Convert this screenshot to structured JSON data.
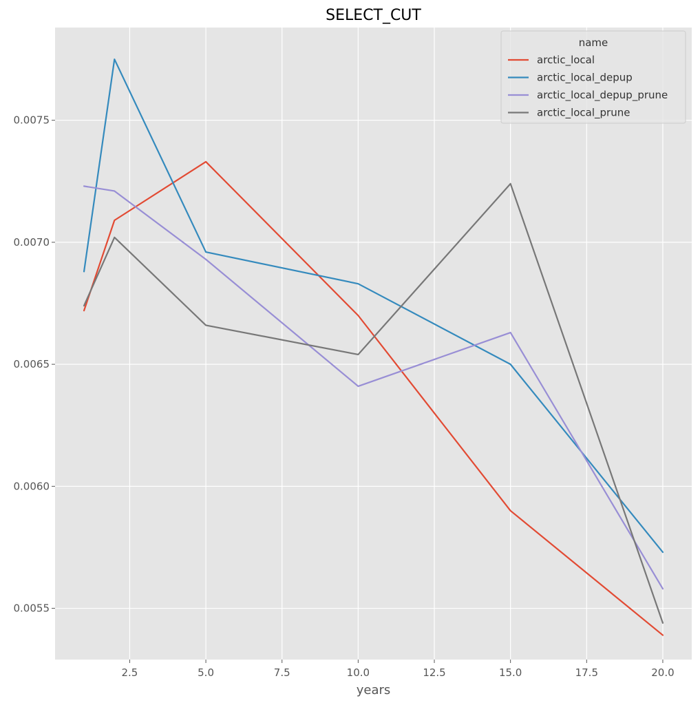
{
  "chart_data": {
    "type": "line",
    "title": "SELECT_CUT",
    "xlabel": "years",
    "ylabel": "",
    "xlim": [
      0.05,
      20.95
    ],
    "ylim": [
      0.00529,
      0.00788
    ],
    "xticks": [
      2.5,
      5.0,
      7.5,
      10.0,
      12.5,
      15.0,
      17.5,
      20.0
    ],
    "xtick_labels": [
      "2.5",
      "5.0",
      "7.5",
      "10.0",
      "12.5",
      "15.0",
      "17.5",
      "20.0"
    ],
    "yticks": [
      0.0055,
      0.006,
      0.0065,
      0.007,
      0.0075
    ],
    "ytick_labels": [
      "0.0055",
      "0.0060",
      "0.0065",
      "0.0070",
      "0.0075"
    ],
    "grid": true,
    "legend": {
      "title": "name",
      "placement": "top-right"
    },
    "x": [
      1,
      2,
      5,
      10,
      15,
      20
    ],
    "series": [
      {
        "name": "arctic_local",
        "color": "#E24A33",
        "values": [
          0.00672,
          0.00709,
          0.00733,
          0.0067,
          0.0059,
          0.00539
        ]
      },
      {
        "name": "arctic_local_depup",
        "color": "#348ABD",
        "values": [
          0.00688,
          0.00775,
          0.00696,
          0.00683,
          0.0065,
          0.00573
        ]
      },
      {
        "name": "arctic_local_depup_prune",
        "color": "#988ED5",
        "values": [
          0.00723,
          0.00721,
          0.00693,
          0.00641,
          0.00663,
          0.00558
        ]
      },
      {
        "name": "arctic_local_prune",
        "color": "#777777",
        "values": [
          0.00674,
          0.00702,
          0.00666,
          0.00654,
          0.00724,
          0.00544
        ]
      }
    ]
  }
}
